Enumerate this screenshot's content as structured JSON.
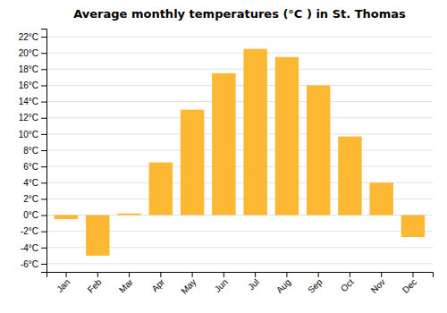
{
  "chart_data": {
    "type": "bar",
    "title": "Average monthly temperatures (°C ) in St. Thomas",
    "categories": [
      "Jan",
      "Feb",
      "Mar",
      "Apr",
      "May",
      "Jun",
      "Jul",
      "Aug",
      "Sep",
      "Oct",
      "Nov",
      "Dec"
    ],
    "values": [
      -0.5,
      -5.0,
      0.2,
      6.5,
      13.0,
      17.5,
      20.5,
      19.5,
      16.0,
      9.7,
      4.0,
      -2.7
    ],
    "color": "#FDB833",
    "ylim": [
      -7,
      23
    ],
    "yticks": [
      {
        "value": -6,
        "label": "-6°C"
      },
      {
        "value": -4,
        "label": "-4°C"
      },
      {
        "value": -2,
        "label": "-2°C"
      },
      {
        "value": 0,
        "label": "0°C"
      },
      {
        "value": 2,
        "label": "2°C"
      },
      {
        "value": 4,
        "label": "4°C"
      },
      {
        "value": 6,
        "label": "6°C"
      },
      {
        "value": 8,
        "label": "8°C"
      },
      {
        "value": 10,
        "label": "10°C"
      },
      {
        "value": 12,
        "label": "12°C"
      },
      {
        "value": 14,
        "label": "14°C"
      },
      {
        "value": 16,
        "label": "16°C"
      },
      {
        "value": 18,
        "label": "18°C"
      },
      {
        "value": 20,
        "label": "20°C"
      },
      {
        "value": 22,
        "label": "22°C"
      }
    ],
    "grid": true
  }
}
